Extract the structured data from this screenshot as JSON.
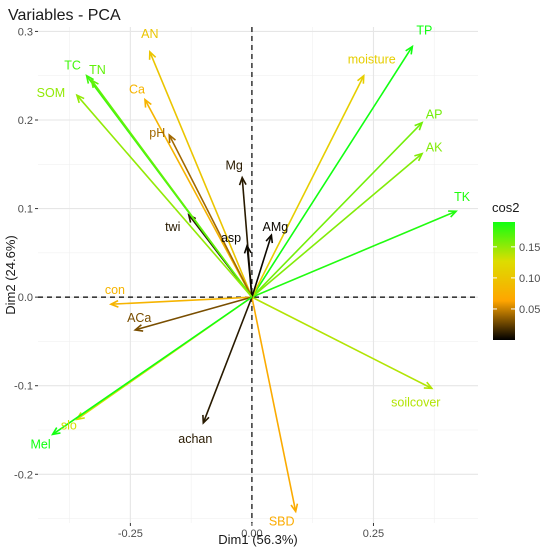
{
  "chart_data": {
    "type": "scatter",
    "subtype": "pca-variable-correlation-arrows",
    "title": "Variables - PCA",
    "xlabel": "Dim1 (56.3%)",
    "ylabel": "Dim2 (24.6%)",
    "xlim": [
      -0.44,
      0.465
    ],
    "ylim": [
      -0.255,
      0.305
    ],
    "x_ticks": [
      -0.25,
      0.0,
      0.25
    ],
    "x_tick_labels": [
      "-0.25",
      "0.00",
      "0.25"
    ],
    "y_ticks": [
      -0.2,
      -0.1,
      0.0,
      0.1,
      0.2,
      0.3
    ],
    "y_tick_labels": [
      "-0.2",
      "-0.1",
      "0.0",
      "0.1",
      "0.2",
      "0.3"
    ],
    "grid": true,
    "reference_lines": [
      {
        "axis": "x",
        "value": 0,
        "style": "dashed"
      },
      {
        "axis": "y",
        "value": 0,
        "style": "dashed"
      }
    ],
    "color_by": "cos2",
    "legend": {
      "title": "cos2",
      "placement": "right",
      "gradient": [
        "#000000",
        "#FFA500",
        "#DDDD00",
        "#11FF11"
      ],
      "domain": [
        0.0,
        0.19
      ],
      "ticks": [
        0.05,
        0.1,
        0.15
      ],
      "tick_labels": [
        "0.05",
        "0.10",
        "0.15"
      ]
    },
    "variables": [
      {
        "name": "TP",
        "x": 0.33,
        "y": 0.283,
        "cos2": 0.19
      },
      {
        "name": "TK",
        "x": 0.42,
        "y": 0.097,
        "cos2": 0.185
      },
      {
        "name": "AP",
        "x": 0.35,
        "y": 0.197,
        "cos2": 0.16
      },
      {
        "name": "AK",
        "x": 0.35,
        "y": 0.162,
        "cos2": 0.155
      },
      {
        "name": "moisture",
        "x": 0.23,
        "y": 0.25,
        "cos2": 0.11
      },
      {
        "name": "soilcover",
        "x": 0.37,
        "y": -0.103,
        "cos2": 0.14
      },
      {
        "name": "SBD",
        "x": 0.09,
        "y": -0.242,
        "cos2": 0.07
      },
      {
        "name": "AN",
        "x": -0.21,
        "y": 0.277,
        "cos2": 0.1
      },
      {
        "name": "Ca",
        "x": -0.22,
        "y": 0.223,
        "cos2": 0.08
      },
      {
        "name": "pH",
        "x": -0.17,
        "y": 0.183,
        "cos2": 0.04
      },
      {
        "name": "Mg",
        "x": -0.02,
        "y": 0.135,
        "cos2": 0.01
      },
      {
        "name": "asp",
        "x": -0.01,
        "y": 0.058,
        "cos2": 0.003
      },
      {
        "name": "AMg",
        "x": 0.04,
        "y": 0.07,
        "cos2": 0.003
      },
      {
        "name": "twi",
        "x": -0.13,
        "y": 0.093,
        "cos2": 0.01
      },
      {
        "name": "TC",
        "x": -0.34,
        "y": 0.25,
        "cos2": 0.175
      },
      {
        "name": "TN",
        "x": -0.33,
        "y": 0.245,
        "cos2": 0.165
      },
      {
        "name": "SOM",
        "x": -0.36,
        "y": 0.228,
        "cos2": 0.15
      },
      {
        "name": "con",
        "x": -0.29,
        "y": -0.008,
        "cos2": 0.08
      },
      {
        "name": "ACa",
        "x": -0.24,
        "y": -0.037,
        "cos2": 0.03
      },
      {
        "name": "achan",
        "x": -0.1,
        "y": -0.142,
        "cos2": 0.01
      },
      {
        "name": "slo",
        "x": -0.36,
        "y": -0.138,
        "cos2": 0.13
      },
      {
        "name": "Mel",
        "x": -0.41,
        "y": -0.155,
        "cos2": 0.19
      }
    ]
  }
}
